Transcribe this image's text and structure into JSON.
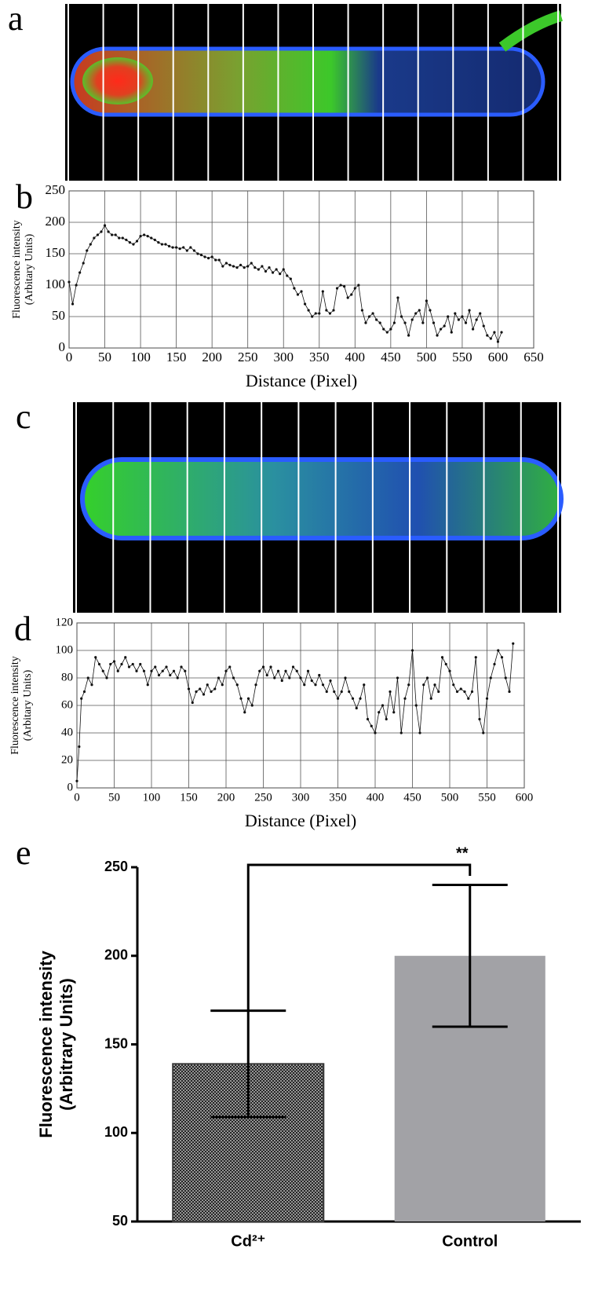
{
  "image_panels": [
    {
      "label": "a"
    },
    {
      "label": "c"
    }
  ],
  "chart_data": [
    {
      "type": "line",
      "label": "b",
      "xlabel": "Distance (Pixel)",
      "ylabel": [
        "Fluorescence intensity",
        "(Arbitary Units)"
      ],
      "color": "#111111",
      "grid": true,
      "xlim": [
        0,
        650
      ],
      "xticks": [
        0,
        50,
        100,
        150,
        200,
        250,
        300,
        350,
        400,
        450,
        500,
        550,
        600,
        650
      ],
      "ylim": [
        0,
        250
      ],
      "yticks": [
        0,
        50,
        100,
        150,
        200,
        250
      ],
      "x": [
        0,
        5,
        10,
        15,
        20,
        25,
        30,
        35,
        40,
        45,
        50,
        55,
        60,
        65,
        70,
        75,
        80,
        85,
        90,
        95,
        100,
        105,
        110,
        115,
        120,
        125,
        130,
        135,
        140,
        145,
        150,
        155,
        160,
        165,
        170,
        175,
        180,
        185,
        190,
        195,
        200,
        205,
        210,
        215,
        220,
        225,
        230,
        235,
        240,
        245,
        250,
        255,
        260,
        265,
        270,
        275,
        280,
        285,
        290,
        295,
        300,
        305,
        310,
        315,
        320,
        325,
        330,
        335,
        340,
        345,
        350,
        355,
        360,
        365,
        370,
        375,
        380,
        385,
        390,
        395,
        400,
        405,
        410,
        415,
        420,
        425,
        430,
        435,
        440,
        445,
        450,
        455,
        460,
        465,
        470,
        475,
        480,
        485,
        490,
        495,
        500,
        505,
        510,
        515,
        520,
        525,
        530,
        535,
        540,
        545,
        550,
        555,
        560,
        565,
        570,
        575,
        580,
        585,
        590,
        595,
        600,
        605
      ],
      "values": [
        105,
        70,
        100,
        120,
        135,
        155,
        165,
        175,
        180,
        185,
        195,
        185,
        180,
        180,
        175,
        175,
        172,
        168,
        165,
        170,
        178,
        180,
        178,
        175,
        172,
        168,
        165,
        165,
        162,
        160,
        160,
        158,
        160,
        155,
        160,
        155,
        150,
        148,
        145,
        143,
        145,
        140,
        140,
        130,
        135,
        132,
        130,
        128,
        132,
        128,
        130,
        135,
        128,
        125,
        130,
        122,
        128,
        120,
        125,
        118,
        125,
        115,
        110,
        95,
        85,
        90,
        70,
        60,
        50,
        55,
        55,
        90,
        60,
        55,
        60,
        95,
        100,
        98,
        80,
        85,
        95,
        100,
        60,
        40,
        50,
        55,
        45,
        40,
        30,
        25,
        30,
        40,
        80,
        50,
        40,
        20,
        45,
        55,
        60,
        40,
        75,
        60,
        40,
        20,
        30,
        35,
        50,
        25,
        55,
        45,
        50,
        40,
        60,
        30,
        45,
        55,
        35,
        20,
        15,
        25,
        10,
        25
      ]
    },
    {
      "type": "line",
      "label": "d",
      "xlabel": "Distance (Pixel)",
      "ylabel": [
        "Fluorescence intensity",
        "(Arbitary Units)"
      ],
      "color": "#111111",
      "grid": true,
      "xlim": [
        0,
        600
      ],
      "xticks": [
        0,
        50,
        100,
        150,
        200,
        250,
        300,
        350,
        400,
        450,
        500,
        550,
        600
      ],
      "ylim": [
        0,
        120
      ],
      "yticks": [
        0,
        20,
        40,
        60,
        80,
        100,
        120
      ],
      "x": [
        0,
        3,
        6,
        10,
        15,
        20,
        25,
        30,
        35,
        40,
        45,
        50,
        55,
        60,
        65,
        70,
        75,
        80,
        85,
        90,
        95,
        100,
        105,
        110,
        115,
        120,
        125,
        130,
        135,
        140,
        145,
        150,
        155,
        160,
        165,
        170,
        175,
        180,
        185,
        190,
        195,
        200,
        205,
        210,
        215,
        220,
        225,
        230,
        235,
        240,
        245,
        250,
        255,
        260,
        265,
        270,
        275,
        280,
        285,
        290,
        295,
        300,
        305,
        310,
        315,
        320,
        325,
        330,
        335,
        340,
        345,
        350,
        355,
        360,
        365,
        370,
        375,
        380,
        385,
        390,
        395,
        400,
        405,
        410,
        415,
        420,
        425,
        430,
        435,
        440,
        445,
        450,
        455,
        460,
        465,
        470,
        475,
        480,
        485,
        490,
        495,
        500,
        505,
        510,
        515,
        520,
        525,
        530,
        535,
        540,
        545,
        550,
        555,
        560,
        565,
        570,
        575,
        580,
        585
      ],
      "values": [
        5,
        30,
        65,
        70,
        80,
        75,
        95,
        90,
        85,
        80,
        90,
        92,
        85,
        90,
        95,
        88,
        90,
        85,
        90,
        85,
        75,
        85,
        88,
        82,
        85,
        88,
        82,
        85,
        80,
        88,
        85,
        72,
        62,
        70,
        72,
        68,
        75,
        70,
        72,
        80,
        75,
        85,
        88,
        80,
        75,
        65,
        55,
        65,
        60,
        75,
        85,
        88,
        82,
        88,
        80,
        85,
        78,
        85,
        80,
        88,
        85,
        80,
        75,
        85,
        78,
        75,
        82,
        75,
        70,
        78,
        70,
        65,
        70,
        80,
        70,
        65,
        58,
        65,
        75,
        50,
        45,
        40,
        55,
        60,
        50,
        70,
        55,
        80,
        40,
        65,
        75,
        100,
        60,
        40,
        75,
        80,
        65,
        75,
        70,
        95,
        90,
        85,
        75,
        70,
        72,
        70,
        65,
        70,
        95,
        50,
        40,
        65,
        80,
        90,
        100,
        95,
        80,
        70,
        105
      ]
    },
    {
      "type": "bar",
      "label": "e",
      "ylabel": [
        "Fluorescence intensity",
        "(Arbitrary Units)"
      ],
      "annotation": "**",
      "categories": [
        "Cd²⁺",
        "Control"
      ],
      "values": [
        139,
        200
      ],
      "errors": [
        30,
        40
      ],
      "colors": [
        "#3a3a3a",
        "#a2a2a6"
      ],
      "ylim": [
        50,
        250
      ],
      "yticks": [
        50,
        100,
        150,
        200,
        250
      ]
    }
  ]
}
